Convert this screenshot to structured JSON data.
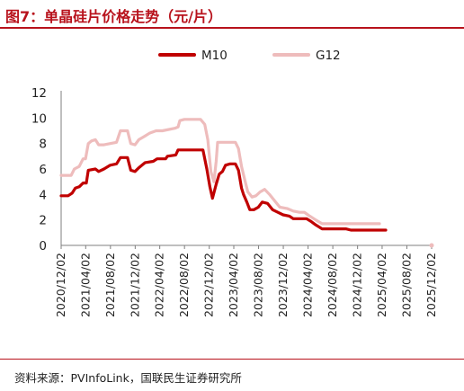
{
  "title": "图7：单晶硅片价格走势（元/片）",
  "source": "资料来源：PVInfoLink，国联民生证券研究所",
  "colors": {
    "accent": "#b8121c",
    "M10": "#c00000",
    "G12": "#eebcbc"
  },
  "chart_data": {
    "type": "line",
    "legend_position": "top",
    "grid": false,
    "ylim": [
      0,
      12
    ],
    "yticks": [
      "0",
      "2",
      "4",
      "6",
      "8",
      "10",
      "12"
    ],
    "xlim": [
      "2020-12-02",
      "2025-12-02"
    ],
    "xticks": [
      "2020/12/02",
      "2021/04/02",
      "2021/08/02",
      "2021/12/02",
      "2022/04/02",
      "2022/08/02",
      "2022/12/02",
      "2023/04/02",
      "2023/08/02",
      "2023/12/02",
      "2024/04/02",
      "2024/08/02",
      "2024/12/02",
      "2025/04/02",
      "2025/08/02",
      "2025/12/02"
    ],
    "series": [
      {
        "name": "M10",
        "color": "#c00000",
        "points": [
          [
            "2020-12-02",
            3.9
          ],
          [
            "2021-01-05",
            3.9
          ],
          [
            "2021-01-25",
            4.1
          ],
          [
            "2021-02-10",
            4.5
          ],
          [
            "2021-03-01",
            4.6
          ],
          [
            "2021-03-20",
            4.9
          ],
          [
            "2021-04-05",
            4.9
          ],
          [
            "2021-04-15",
            5.9
          ],
          [
            "2021-05-20",
            6.0
          ],
          [
            "2021-06-05",
            5.8
          ],
          [
            "2021-07-01",
            6.0
          ],
          [
            "2021-08-01",
            6.3
          ],
          [
            "2021-09-01",
            6.4
          ],
          [
            "2021-09-20",
            6.9
          ],
          [
            "2021-10-25",
            6.9
          ],
          [
            "2021-11-10",
            5.9
          ],
          [
            "2021-12-01",
            5.8
          ],
          [
            "2021-12-20",
            6.1
          ],
          [
            "2022-01-20",
            6.5
          ],
          [
            "2022-03-01",
            6.6
          ],
          [
            "2022-03-20",
            6.8
          ],
          [
            "2022-05-01",
            6.8
          ],
          [
            "2022-05-10",
            7.0
          ],
          [
            "2022-06-20",
            7.1
          ],
          [
            "2022-07-01",
            7.5
          ],
          [
            "2022-08-01",
            7.5
          ],
          [
            "2022-10-01",
            7.5
          ],
          [
            "2022-11-01",
            7.5
          ],
          [
            "2022-11-20",
            6.0
          ],
          [
            "2022-12-05",
            4.6
          ],
          [
            "2022-12-18",
            3.7
          ],
          [
            "2023-01-05",
            4.8
          ],
          [
            "2023-01-20",
            5.6
          ],
          [
            "2023-02-05",
            5.8
          ],
          [
            "2023-02-20",
            6.3
          ],
          [
            "2023-03-15",
            6.4
          ],
          [
            "2023-04-10",
            6.4
          ],
          [
            "2023-04-25",
            5.9
          ],
          [
            "2023-05-10",
            4.5
          ],
          [
            "2023-05-20",
            4.0
          ],
          [
            "2023-06-05",
            3.4
          ],
          [
            "2023-06-20",
            2.8
          ],
          [
            "2023-07-10",
            2.8
          ],
          [
            "2023-08-01",
            3.0
          ],
          [
            "2023-08-20",
            3.4
          ],
          [
            "2023-09-15",
            3.3
          ],
          [
            "2023-10-10",
            2.8
          ],
          [
            "2023-11-05",
            2.6
          ],
          [
            "2023-12-01",
            2.4
          ],
          [
            "2024-01-01",
            2.3
          ],
          [
            "2024-01-20",
            2.1
          ],
          [
            "2024-03-01",
            2.1
          ],
          [
            "2024-03-25",
            2.1
          ],
          [
            "2024-04-15",
            1.9
          ],
          [
            "2024-05-10",
            1.6
          ],
          [
            "2024-06-10",
            1.3
          ],
          [
            "2024-07-15",
            1.3
          ],
          [
            "2024-09-01",
            1.3
          ],
          [
            "2024-10-05",
            1.3
          ],
          [
            "2024-10-30",
            1.2
          ],
          [
            "2025-01-10",
            1.2
          ],
          [
            "2025-03-10",
            1.2
          ],
          [
            "2025-04-20",
            1.2
          ]
        ]
      },
      {
        "name": "G12",
        "color": "#eebcbc",
        "points": [
          [
            "2020-12-02",
            5.5
          ],
          [
            "2021-01-20",
            5.5
          ],
          [
            "2021-02-05",
            6.0
          ],
          [
            "2021-03-01",
            6.2
          ],
          [
            "2021-03-20",
            6.8
          ],
          [
            "2021-04-01",
            6.8
          ],
          [
            "2021-04-15",
            8.0
          ],
          [
            "2021-05-01",
            8.2
          ],
          [
            "2021-05-20",
            8.3
          ],
          [
            "2021-06-05",
            7.9
          ],
          [
            "2021-07-01",
            7.9
          ],
          [
            "2021-08-01",
            8.0
          ],
          [
            "2021-09-01",
            8.1
          ],
          [
            "2021-09-20",
            9.0
          ],
          [
            "2021-10-25",
            9.0
          ],
          [
            "2021-11-10",
            8.0
          ],
          [
            "2021-12-01",
            7.9
          ],
          [
            "2021-12-20",
            8.3
          ],
          [
            "2022-01-20",
            8.6
          ],
          [
            "2022-02-10",
            8.8
          ],
          [
            "2022-03-15",
            9.0
          ],
          [
            "2022-04-15",
            9.0
          ],
          [
            "2022-06-15",
            9.2
          ],
          [
            "2022-07-01",
            9.3
          ],
          [
            "2022-07-10",
            9.8
          ],
          [
            "2022-08-01",
            9.9
          ],
          [
            "2022-10-20",
            9.9
          ],
          [
            "2022-11-10",
            9.5
          ],
          [
            "2022-11-25",
            8.3
          ],
          [
            "2022-12-10",
            5.8
          ],
          [
            "2022-12-25",
            5.0
          ],
          [
            "2023-01-05",
            6.6
          ],
          [
            "2023-01-12",
            8.1
          ],
          [
            "2023-02-01",
            8.1
          ],
          [
            "2023-03-20",
            8.1
          ],
          [
            "2023-04-10",
            8.1
          ],
          [
            "2023-04-25",
            7.6
          ],
          [
            "2023-05-10",
            6.2
          ],
          [
            "2023-05-25",
            5.2
          ],
          [
            "2023-06-10",
            4.2
          ],
          [
            "2023-07-01",
            3.8
          ],
          [
            "2023-07-20",
            3.9
          ],
          [
            "2023-08-10",
            4.2
          ],
          [
            "2023-09-01",
            4.4
          ],
          [
            "2023-09-25",
            4.0
          ],
          [
            "2023-10-20",
            3.5
          ],
          [
            "2023-11-15",
            3.0
          ],
          [
            "2023-12-20",
            2.9
          ],
          [
            "2024-01-20",
            2.7
          ],
          [
            "2024-02-20",
            2.6
          ],
          [
            "2024-03-15",
            2.6
          ],
          [
            "2024-04-10",
            2.3
          ],
          [
            "2024-05-10",
            2.0
          ],
          [
            "2024-06-10",
            1.7
          ],
          [
            "2024-08-01",
            1.7
          ],
          [
            "2024-10-15",
            1.7
          ],
          [
            "2025-02-01",
            1.7
          ],
          [
            "2025-03-20",
            1.7
          ]
        ]
      }
    ]
  }
}
